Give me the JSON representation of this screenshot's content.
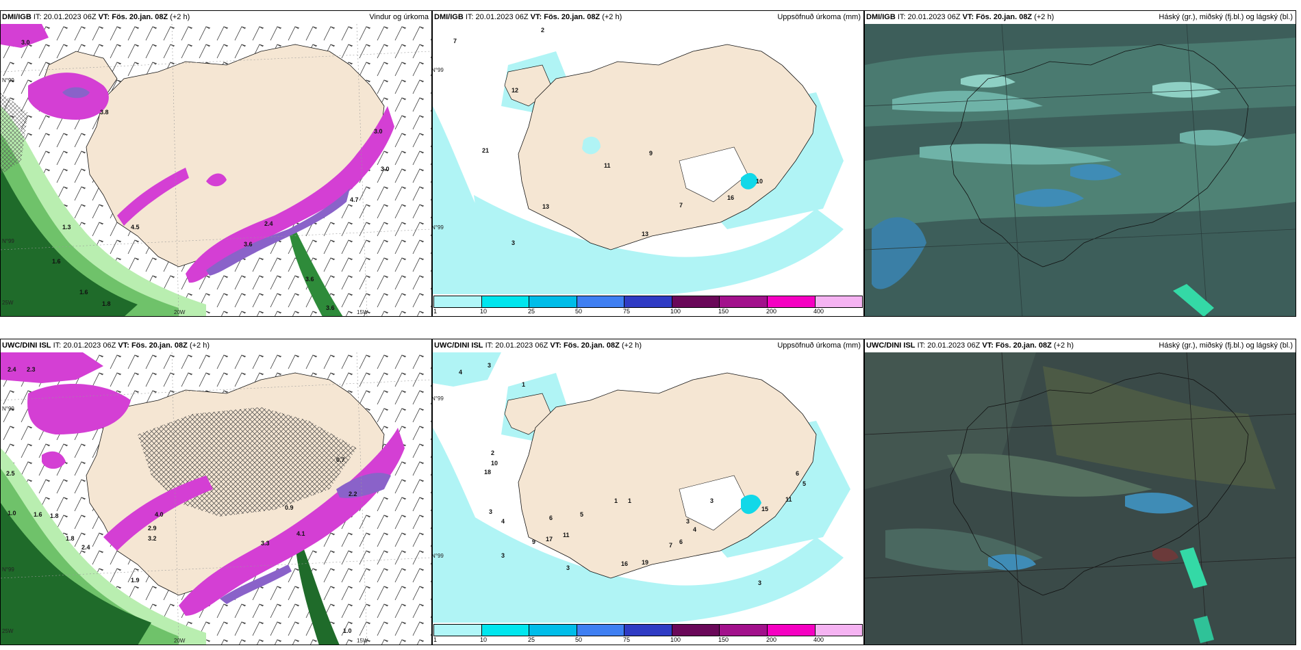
{
  "colors": {
    "land": "#f5e6d3",
    "precip_light": "#b0f4f5",
    "precip_mid": "#12d8e8",
    "wind_pink": "#d43fd4",
    "wind_purple": "#8a62c9",
    "green_dark": "#1f6b2a",
    "green_mid": "#5fb25f",
    "green_light": "#b9eeb0",
    "cloud_bg": "#3d5a5a"
  },
  "panels": [
    {
      "id": "dmi-wind",
      "model": "DMI/IGB",
      "it_label": "IT:",
      "it_value": "20.01.2023 06Z",
      "vt_label": "VT:",
      "vt_value": "Fös. 20.jan. 08Z",
      "lead": "(+2 h)",
      "title": "Vindur og úrkoma",
      "value_labels": [
        "3.0",
        "3.0",
        "3.8",
        "4.5",
        "1.3",
        "2.4",
        "3.6",
        "1.6",
        "1.8",
        "3.6",
        "3.6",
        "1.6",
        "3.0",
        "4.7"
      ],
      "axis_labels": [
        "20W",
        "15W",
        "25W",
        "N°99",
        "N°99"
      ]
    },
    {
      "id": "dmi-precip",
      "model": "DMI/IGB",
      "it_label": "IT:",
      "it_value": "20.01.2023 06Z",
      "vt_label": "VT:",
      "vt_value": "Fös. 20.jan. 08Z",
      "lead": "(+2 h)",
      "title": "Uppsöfnuð úrkoma (mm)",
      "value_labels": [
        "7",
        "2",
        "12",
        "21",
        "9",
        "11",
        "13",
        "7",
        "16",
        "10",
        "13",
        "3"
      ],
      "axis_labels": [
        "N°99",
        "N°99"
      ],
      "colorbar": {
        "ticks": [
          "1",
          "10",
          "25",
          "50",
          "75",
          "100",
          "150",
          "200",
          "400"
        ],
        "colors": [
          "#b0f6f8",
          "#00e6ee",
          "#00bde9",
          "#3f7ff2",
          "#2f3bc4",
          "#6a0859",
          "#a2118c",
          "#f500c2",
          "#f5b3f2"
        ]
      }
    },
    {
      "id": "dmi-cloud",
      "model": "DMI/IGB",
      "it_label": "IT:",
      "it_value": "20.01.2023 06Z",
      "vt_label": "VT:",
      "vt_value": "Fös. 20.jan. 08Z",
      "lead": "(+2 h)",
      "title": "Háský (gr.), miðský (fj.bl.) og lágský (bl.)"
    },
    {
      "id": "uwc-wind",
      "model": "UWC/DINI ISL",
      "it_label": "IT:",
      "it_value": "20.01.2023 06Z",
      "vt_label": "VT:",
      "vt_value": "Fös. 20.jan. 08Z",
      "lead": "(+2 h)",
      "title": "",
      "value_labels": [
        "2.4",
        "2.3",
        "2.5",
        "1.0",
        "1.6",
        "1.8",
        "1.8",
        "2.4",
        "1.9",
        "2.9",
        "3.2",
        "4.0",
        "3.3",
        "4.1",
        "2.2",
        "0.7",
        "0.9",
        "1.0"
      ],
      "axis_labels": [
        "20W",
        "15W",
        "25W",
        "N°99",
        "N°99"
      ]
    },
    {
      "id": "uwc-precip",
      "model": "UWC/DINI ISL",
      "it_label": "IT:",
      "it_value": "20.01.2023 06Z",
      "vt_label": "VT:",
      "vt_value": "Fös. 20.jan. 08Z",
      "lead": "(+2 h)",
      "title": "Uppsöfnuð úrkoma (mm)",
      "value_labels": [
        "4",
        "3",
        "1",
        "2",
        "10",
        "18",
        "3",
        "4",
        "9",
        "17",
        "11",
        "6",
        "5",
        "1",
        "1",
        "7",
        "6",
        "4",
        "3",
        "3",
        "11",
        "15",
        "19",
        "16",
        "3",
        "3",
        "5",
        "6",
        "3"
      ],
      "axis_labels": [
        "N°99",
        "N°99"
      ],
      "colorbar": {
        "ticks": [
          "1",
          "10",
          "25",
          "50",
          "75",
          "100",
          "150",
          "200",
          "400"
        ],
        "colors": [
          "#b0f6f8",
          "#00e6ee",
          "#00bde9",
          "#3f7ff2",
          "#2f3bc4",
          "#6a0859",
          "#a2118c",
          "#f500c2",
          "#f5b3f2"
        ]
      }
    },
    {
      "id": "uwc-cloud",
      "model": "UWC/DINI ISL",
      "it_label": "IT:",
      "it_value": "20.01.2023 06Z",
      "vt_label": "VT:",
      "vt_value": "Fös. 20.jan. 08Z",
      "lead": "(+2 h)",
      "title": "Háský (gr.), miðský (fj.bl.) og lágský (bl.)"
    }
  ]
}
